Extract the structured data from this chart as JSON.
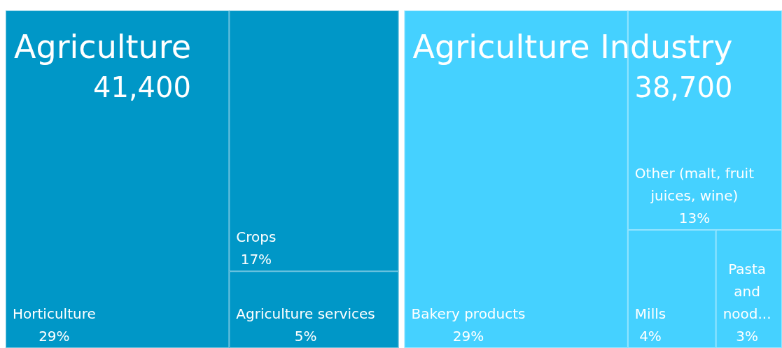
{
  "chart_data": {
    "type": "other",
    "categories": [
      "Horticulture",
      "Crops",
      "Agriculture services",
      "Bakery products",
      "Other (malt, fruit juices, wine)",
      "Mills",
      "Pasta and nood..."
    ],
    "totals": [
      "41,400",
      "38,700"
    ],
    "series": [
      {
        "name": "Agriculture",
        "color": "#0097c7",
        "values": [
          29,
          17,
          5,
          null,
          null,
          null,
          null
        ],
        "value_labels": [
          "29%",
          "17%",
          "5%",
          null,
          null,
          null,
          null
        ]
      },
      {
        "name": "Agriculture Industry",
        "color": "#45d1ff",
        "values": [
          null,
          null,
          null,
          29,
          13,
          4,
          3
        ],
        "value_labels": [
          null,
          null,
          null,
          "29%",
          "13%",
          "4%",
          "3%"
        ]
      }
    ]
  }
}
